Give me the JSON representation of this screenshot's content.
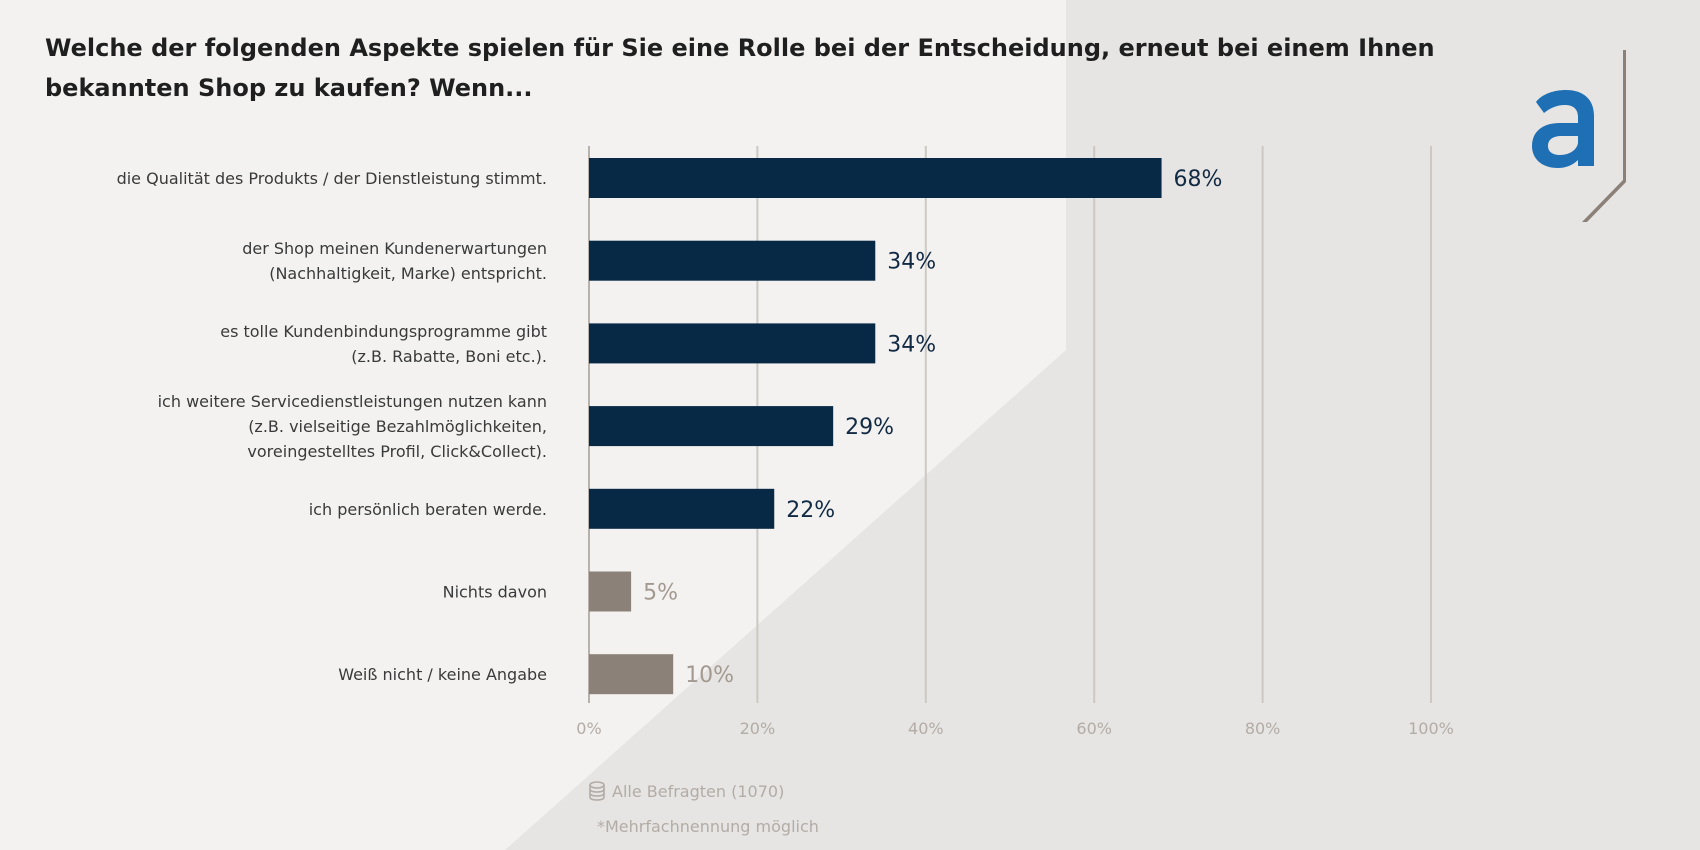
{
  "title": "Welche der folgenden Aspekte spielen für Sie eine Rolle bei der Entscheidung, erneut bei einem Ihnen bekannten Shop zu kaufen? Wenn...",
  "footer": {
    "sample": "Alle Befragten (1070)",
    "note": "*Mehrfachnennung möglich"
  },
  "icons": {
    "sample": "database-icon",
    "logo": "brand-logo-a"
  },
  "colors": {
    "primary_bar": "#072945",
    "secondary_bar": "#8c8178",
    "logo_blue": "#1f6fb5",
    "logo_bracket": "#8c8178"
  },
  "chart_data": {
    "type": "bar",
    "orientation": "horizontal",
    "categories": [
      [
        "die Qualität des Produkts / der Dienstleistung stimmt."
      ],
      [
        "der Shop meinen Kundenerwartungen",
        "(Nachhaltigkeit, Marke) entspricht."
      ],
      [
        "es tolle Kundenbindungsprogramme gibt",
        "(z.B. Rabatte, Boni etc.)."
      ],
      [
        "ich weitere Servicedienstleistungen nutzen kann",
        "(z.B. vielseitige Bezahlmöglichkeiten,",
        "voreingestelltes Profil, Click&Collect)."
      ],
      [
        "ich persönlich beraten werde."
      ],
      [
        "Nichts davon"
      ],
      [
        "Weiß nicht / keine Angabe"
      ]
    ],
    "values": [
      68,
      34,
      34,
      29,
      22,
      5,
      10
    ],
    "value_labels": [
      "68%",
      "34%",
      "34%",
      "29%",
      "22%",
      "5%",
      "10%"
    ],
    "bar_group": [
      "primary",
      "primary",
      "primary",
      "primary",
      "primary",
      "secondary",
      "secondary"
    ],
    "xlim": [
      0,
      100
    ],
    "xticks": [
      0,
      20,
      40,
      60,
      80,
      100
    ],
    "xtick_labels": [
      "0%",
      "20%",
      "40%",
      "60%",
      "80%",
      "100%"
    ],
    "grid": true
  }
}
